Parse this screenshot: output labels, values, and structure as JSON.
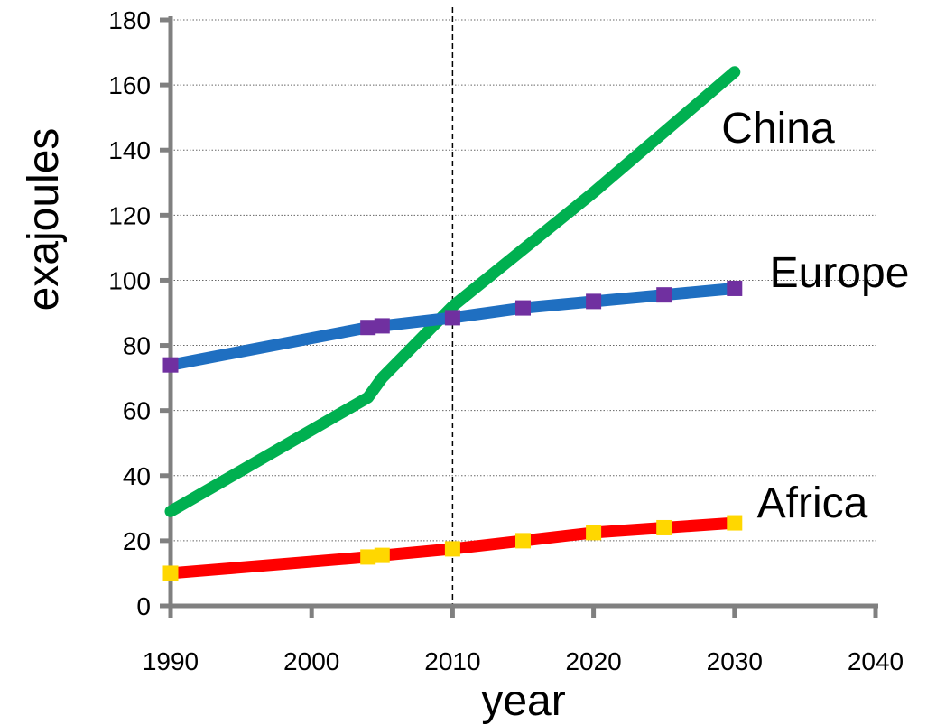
{
  "chart_data": {
    "type": "line",
    "xlabel": "year",
    "ylabel": "exajoules",
    "xlim": [
      1990,
      2040
    ],
    "ylim": [
      0,
      180
    ],
    "x_ticks": [
      "1990",
      "2000",
      "2010",
      "2020",
      "2030",
      "2040"
    ],
    "y_ticks": [
      "0",
      "20",
      "40",
      "60",
      "80",
      "100",
      "120",
      "140",
      "160",
      "180"
    ],
    "grid": "horizontal dotted",
    "reference_line": {
      "x": 2010,
      "style": "dashed"
    },
    "series": [
      {
        "name": "China",
        "color": "#00b050",
        "markers": false,
        "points": [
          [
            1990,
            29
          ],
          [
            2004,
            64
          ],
          [
            2005,
            70
          ],
          [
            2010,
            92
          ],
          [
            2020,
            127
          ],
          [
            2030,
            164
          ]
        ]
      },
      {
        "name": "Europe",
        "color": "#1f6fc1",
        "marker_color": "#7030a0",
        "markers": true,
        "points": [
          [
            1990,
            74
          ],
          [
            2004,
            85.5
          ],
          [
            2005,
            86
          ],
          [
            2010,
            88.5
          ],
          [
            2015,
            91.5
          ],
          [
            2020,
            93.5
          ],
          [
            2025,
            95.5
          ],
          [
            2030,
            97.5
          ]
        ]
      },
      {
        "name": "Africa",
        "color": "#ff0000",
        "marker_color": "#ffd700",
        "markers": true,
        "points": [
          [
            1990,
            10
          ],
          [
            2004,
            15
          ],
          [
            2005,
            15.5
          ],
          [
            2010,
            17.5
          ],
          [
            2015,
            20
          ],
          [
            2020,
            22.5
          ],
          [
            2025,
            24
          ],
          [
            2030,
            25.5
          ]
        ]
      }
    ]
  }
}
